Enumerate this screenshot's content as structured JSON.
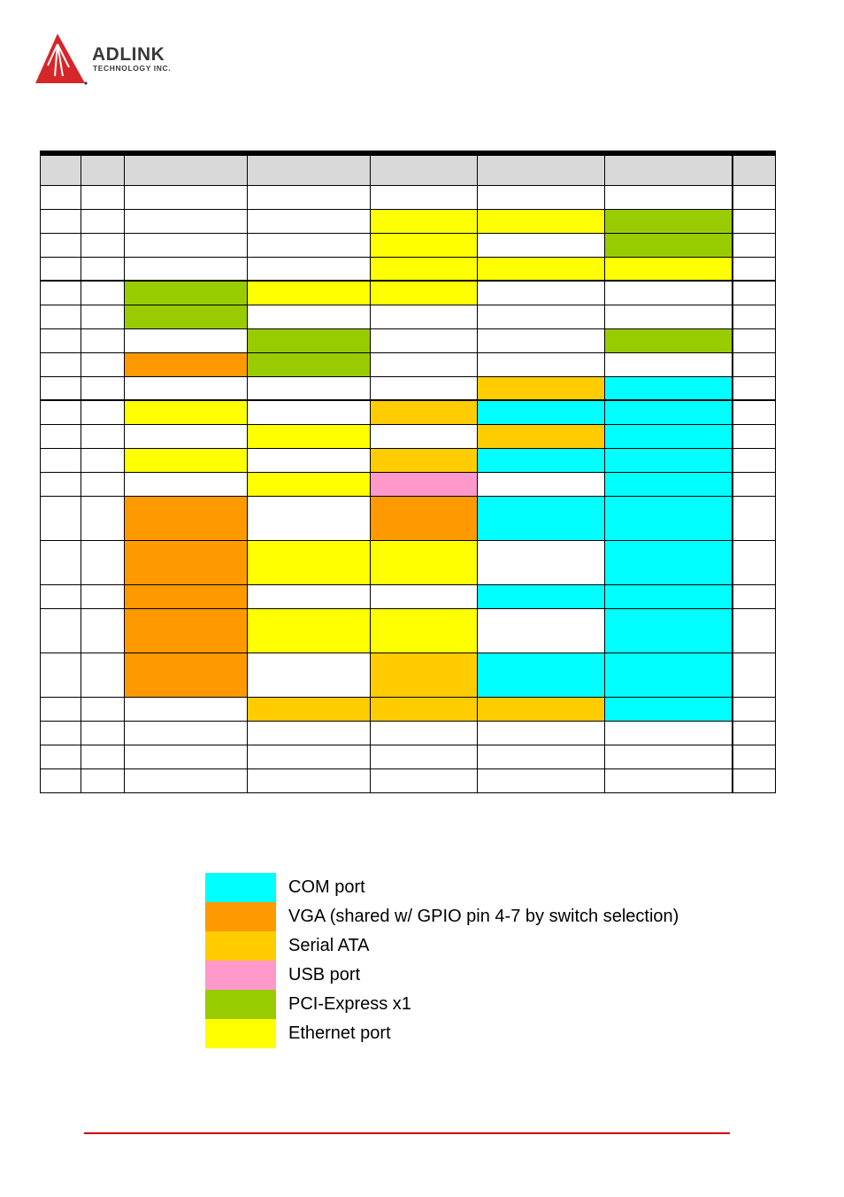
{
  "logo": {
    "brand": "ADLINK",
    "sub": "TECHNOLOGY INC.",
    "color": "#d6262b"
  },
  "colors": {
    "com": "#00ffff",
    "vga": "#ff9900",
    "sata": "#ffcc00",
    "usb": "#ff99cc",
    "pcie": "#99cc00",
    "eth": "#ffff00",
    "none": "#ffffff"
  },
  "table": {
    "columns": 8,
    "rows": [
      [
        "none",
        "none",
        "none",
        "none",
        "none",
        "none",
        "none",
        "none"
      ],
      [
        "none",
        "none",
        "none",
        "none",
        "eth",
        "eth",
        "pcie",
        "none"
      ],
      [
        "none",
        "none",
        "none",
        "none",
        "eth",
        "none",
        "pcie",
        "none"
      ],
      [
        "none",
        "none",
        "none",
        "none",
        "eth",
        "eth",
        "eth",
        "none"
      ],
      [
        "none",
        "none",
        "pcie",
        "eth",
        "eth",
        "none",
        "none",
        "none"
      ],
      [
        "none",
        "none",
        "pcie",
        "none",
        "none",
        "none",
        "none",
        "none"
      ],
      [
        "none",
        "none",
        "none",
        "pcie",
        "none",
        "none",
        "pcie",
        "none"
      ],
      [
        "none",
        "none",
        "vga",
        "pcie",
        "none",
        "none",
        "none",
        "none"
      ],
      [
        "none",
        "none",
        "none",
        "none",
        "none",
        "sata",
        "com",
        "none"
      ],
      [
        "none",
        "none",
        "eth",
        "none",
        "sata",
        "com",
        "com",
        "none"
      ],
      [
        "none",
        "none",
        "none",
        "eth",
        "none",
        "sata",
        "com",
        "none"
      ],
      [
        "none",
        "none",
        "eth",
        "none",
        "sata",
        "com",
        "com",
        "none"
      ],
      [
        "none",
        "none",
        "none",
        "eth",
        "usb",
        "none",
        "com",
        "none"
      ],
      [
        "none",
        "none",
        "vga",
        "none",
        "vga",
        "com",
        "com",
        "none"
      ],
      [
        "none",
        "none",
        "vga",
        "eth",
        "eth",
        "none",
        "com",
        "none"
      ],
      [
        "none",
        "none",
        "vga",
        "none",
        "none",
        "com",
        "com",
        "none"
      ],
      [
        "none",
        "none",
        "vga",
        "eth",
        "eth",
        "none",
        "com",
        "none"
      ],
      [
        "none",
        "none",
        "vga",
        "none",
        "sata",
        "com",
        "com",
        "none"
      ],
      [
        "none",
        "none",
        "none",
        "sata",
        "sata",
        "sata",
        "com",
        "none"
      ],
      [
        "none",
        "none",
        "none",
        "none",
        "none",
        "none",
        "none",
        "none"
      ],
      [
        "none",
        "none",
        "none",
        "none",
        "none",
        "none",
        "none",
        "none"
      ],
      [
        "none",
        "none",
        "none",
        "none",
        "none",
        "none",
        "none",
        "none"
      ]
    ],
    "tall_rows": [
      13,
      14,
      16,
      17
    ],
    "group_start_rows": [
      4,
      9
    ]
  },
  "legend": [
    {
      "key": "com",
      "label": "COM port"
    },
    {
      "key": "vga",
      "label": "VGA (shared w/ GPIO pin 4-7 by switch selection)"
    },
    {
      "key": "sata",
      "label": "Serial ATA"
    },
    {
      "key": "usb",
      "label": "USB port"
    },
    {
      "key": "pcie",
      "label": "PCI-Express x1"
    },
    {
      "key": "eth",
      "label": "Ethernet port"
    }
  ]
}
